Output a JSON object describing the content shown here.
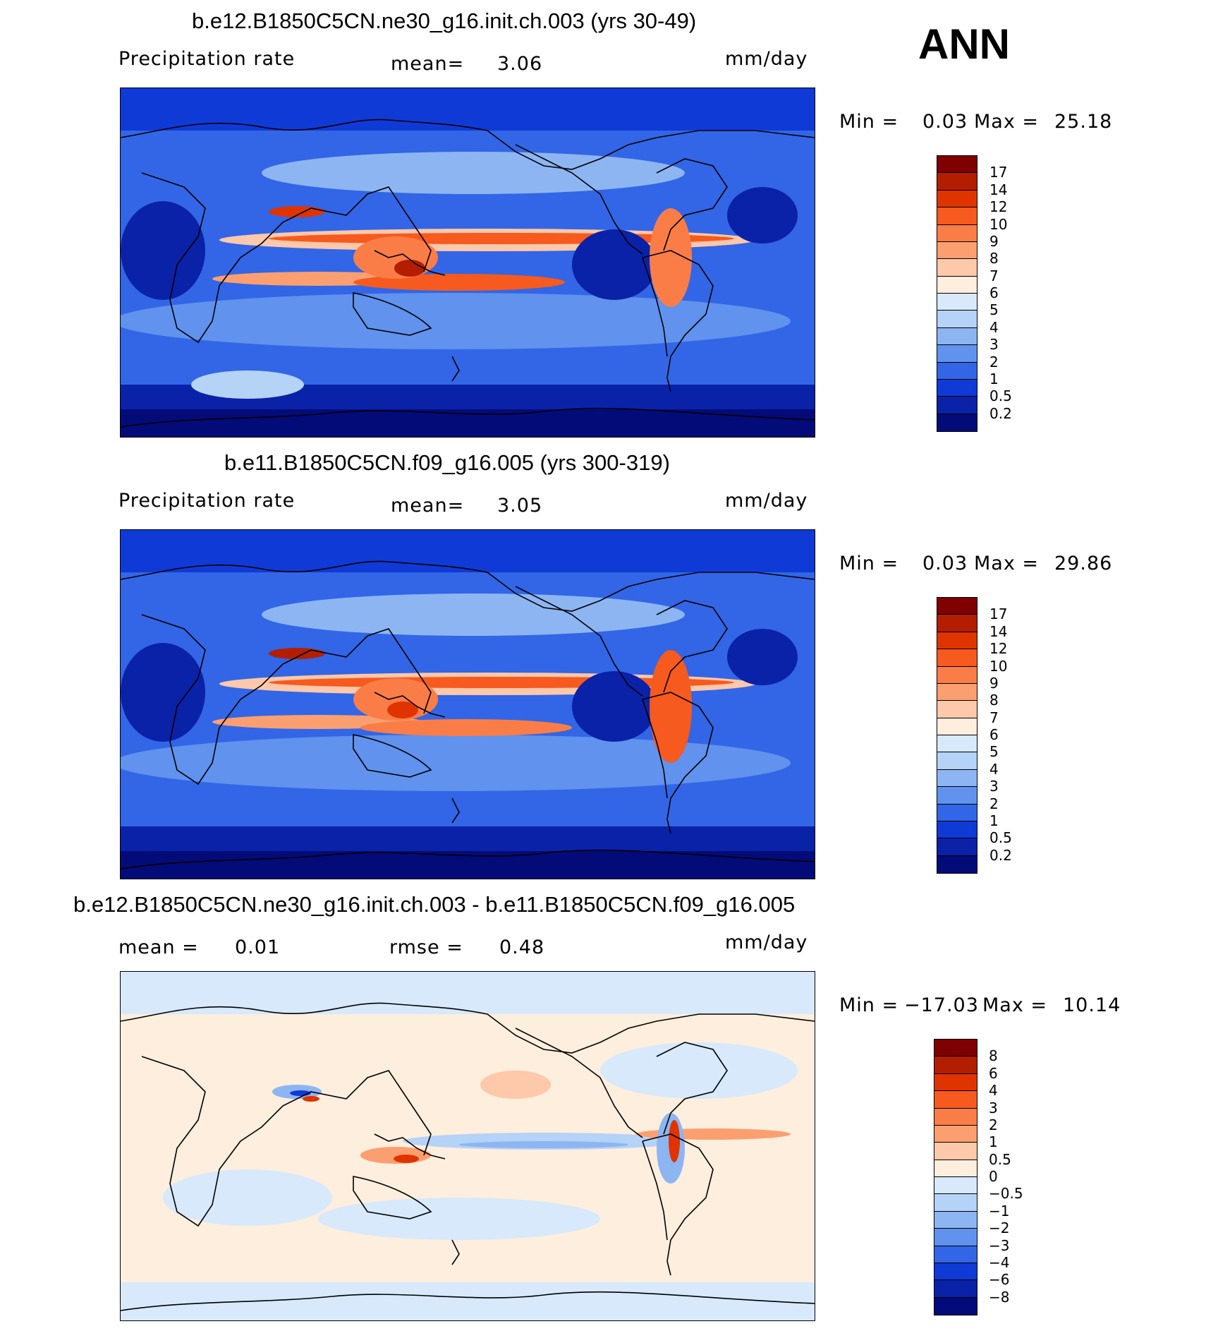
{
  "season": "ANN",
  "panels": [
    {
      "title": "b.e12.B1850C5CN.ne30_g16.init.ch.003 (yrs 30-49)",
      "left_label": "Precipitation rate",
      "mid_label": "mean=",
      "mid_value": "3.06",
      "units": "mm/day",
      "min_label": "Min =",
      "min_value": "0.03",
      "max_label": "Max =",
      "max_value": "25.18"
    },
    {
      "title": "b.e11.B1850C5CN.f09_g16.005 (yrs 300-319)",
      "left_label": "Precipitation rate",
      "mid_label": "mean=",
      "mid_value": "3.05",
      "units": "mm/day",
      "min_label": "Min =",
      "min_value": "0.03",
      "max_label": "Max =",
      "max_value": "29.86"
    },
    {
      "title": "b.e12.B1850C5CN.ne30_g16.init.ch.003 - b.e11.B1850C5CN.f09_g16.005",
      "left_label": "mean =",
      "left_value": "0.01",
      "mid_label": "rmse =",
      "mid_value": "0.48",
      "units": "mm/day",
      "min_label": "Min =",
      "min_value": "−17.03",
      "max_label": "Max =",
      "max_value": "10.14"
    }
  ],
  "colorbars": {
    "precip": {
      "labels": [
        "17",
        "14",
        "12",
        "10",
        "9",
        "8",
        "7",
        "6",
        "5",
        "4",
        "3",
        "2",
        "1",
        "0.5",
        "0.2"
      ],
      "colors": [
        "#7f0000",
        "#b31e00",
        "#e03400",
        "#f65a1e",
        "#fa7d48",
        "#fc9f70",
        "#fec8aa",
        "#fdeede",
        "#d7e9fb",
        "#b5d2f7",
        "#8db5f2",
        "#6092ee",
        "#3266e6",
        "#0f3ad6",
        "#0a22a8",
        "#030b78"
      ]
    },
    "diff": {
      "labels": [
        "8",
        "6",
        "4",
        "3",
        "2",
        "1",
        "0.5",
        "0",
        "−0.5",
        "−1",
        "−2",
        "−3",
        "−4",
        "−6",
        "−8"
      ],
      "colors": [
        "#7f0000",
        "#b31e00",
        "#e03400",
        "#f65a1e",
        "#fa7d48",
        "#fc9f70",
        "#fec8aa",
        "#fdeede",
        "#d7e9fb",
        "#b5d2f7",
        "#8db5f2",
        "#6092ee",
        "#3266e6",
        "#0f3ad6",
        "#0a22a8",
        "#030b78"
      ]
    }
  }
}
